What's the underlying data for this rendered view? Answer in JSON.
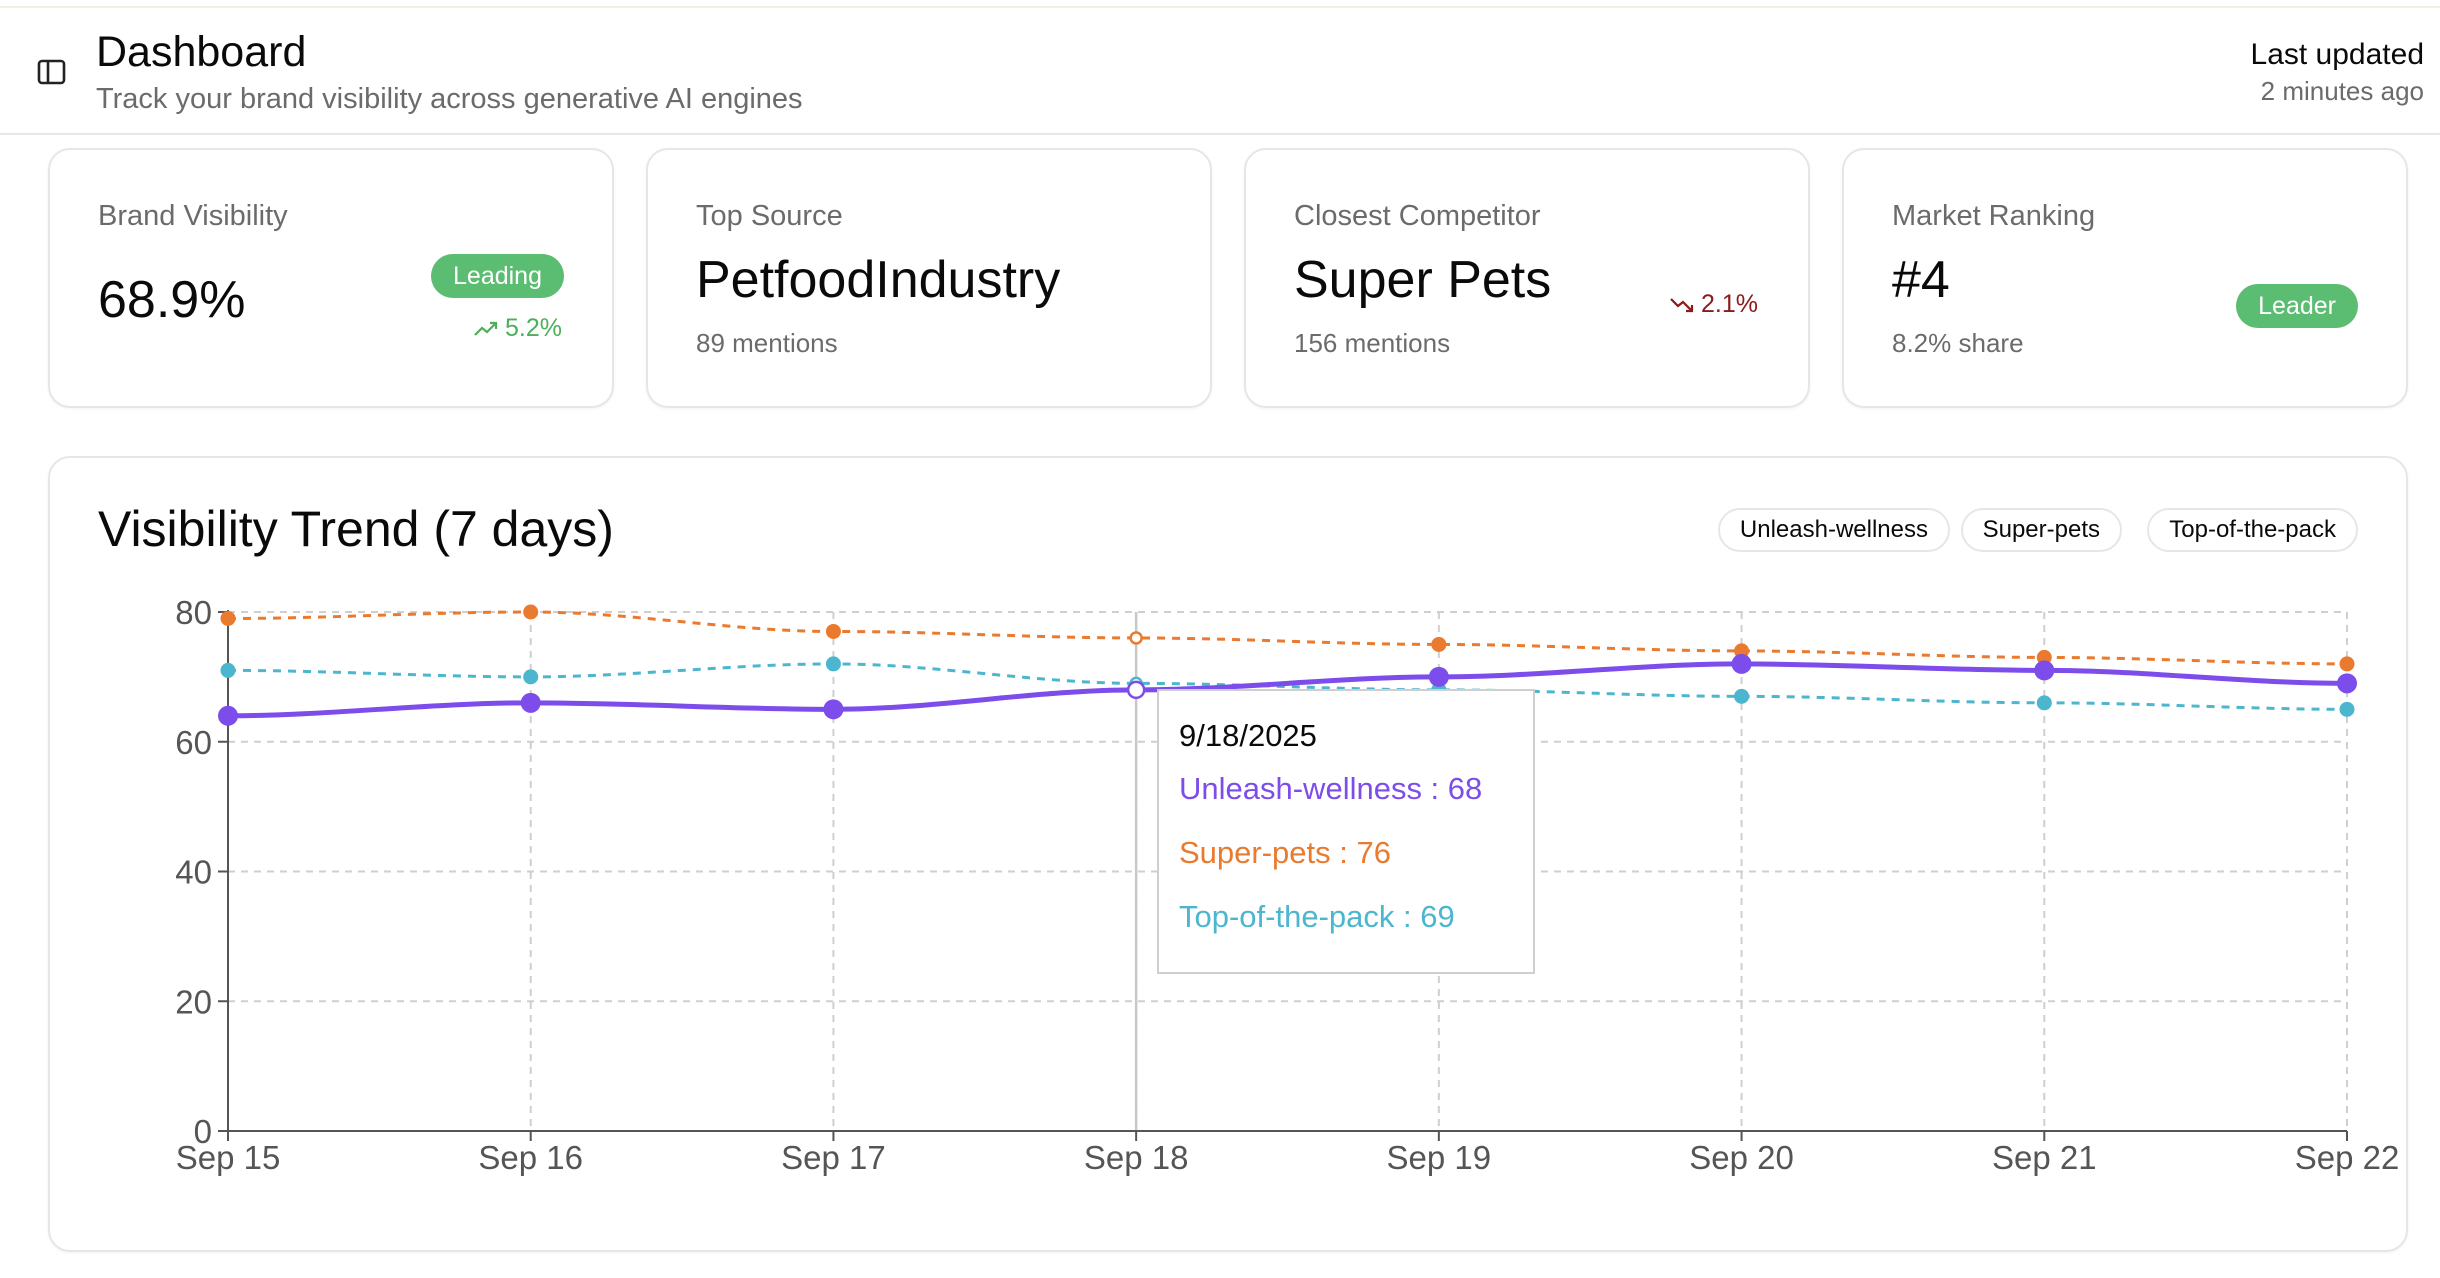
{
  "header": {
    "title": "Dashboard",
    "subtitle": "Track your brand visibility across generative AI engines",
    "updated_label": "Last updated",
    "updated_value": "2 minutes ago",
    "toggle_icon": "sidebar-toggle-icon"
  },
  "cards": [
    {
      "label": "Brand Visibility",
      "value": "68.9%",
      "badge": "Leading",
      "trend": "5.2%",
      "trend_direction": "up",
      "trend_color": "#4caf5a"
    },
    {
      "label": "Top Source",
      "value": "PetfoodIndustry",
      "sub": "89 mentions"
    },
    {
      "label": "Closest Competitor",
      "value": "Super Pets",
      "sub": "156 mentions",
      "trend": "2.1%",
      "trend_direction": "down",
      "trend_color": "#8b1a1a"
    },
    {
      "label": "Market Ranking",
      "value": "#4",
      "sub": "8.2% share",
      "badge": "Leader"
    }
  ],
  "colors": {
    "badge_green": "#5bbd72",
    "unleash": "#7c4dea",
    "superpets": "#ea7a2e",
    "toppack": "#4cb6cf"
  },
  "chart": {
    "title": "Visibility Trend (7 days)",
    "legend": [
      "Unleash-wellness",
      "Super-pets",
      "Top-of-the-pack"
    ]
  },
  "chart_data": {
    "type": "line",
    "title": "Visibility Trend (7 days)",
    "categories": [
      "Sep 15",
      "Sep 16",
      "Sep 17",
      "Sep 18",
      "Sep 19",
      "Sep 20",
      "Sep 21",
      "Sep 22"
    ],
    "ylim": [
      0,
      80
    ],
    "yticks": [
      0,
      20,
      40,
      60,
      80
    ],
    "grid": true,
    "legend_position": "top-right",
    "series": [
      {
        "name": "Unleash-wellness",
        "color": "#7c4dea",
        "style": "solid",
        "values": [
          64,
          66,
          65,
          68,
          70,
          72,
          71,
          69
        ]
      },
      {
        "name": "Super-pets",
        "color": "#ea7a2e",
        "style": "dashed",
        "values": [
          79,
          80,
          77,
          76,
          75,
          74,
          73,
          72
        ]
      },
      {
        "name": "Top-of-the-pack",
        "color": "#4cb6cf",
        "style": "dashed",
        "values": [
          71,
          70,
          72,
          69,
          68,
          67,
          66,
          65
        ]
      }
    ],
    "tooltip": {
      "date": "9/18/2025",
      "rows": [
        {
          "text": "Unleash-wellness : 68",
          "color": "#7c4dea"
        },
        {
          "text": "Super-pets : 76",
          "color": "#ea7a2e"
        },
        {
          "text": "Top-of-the-pack : 69",
          "color": "#4cb6cf"
        }
      ]
    }
  }
}
